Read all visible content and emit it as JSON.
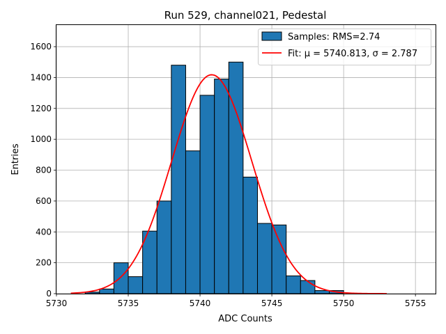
{
  "chart_data": {
    "type": "bar",
    "title": "Run 529, channel021, Pedestal",
    "xlabel": "ADC Counts",
    "ylabel": "Entries",
    "xlim": [
      5730,
      5756.4
    ],
    "ylim": [
      0,
      1740
    ],
    "xticks": [
      5730,
      5735,
      5740,
      5745,
      5750,
      5755
    ],
    "yticks": [
      0,
      200,
      400,
      600,
      800,
      1000,
      1200,
      1400,
      1600
    ],
    "grid": true,
    "legend_position": "top-right",
    "bin_edges": [
      5731,
      5732,
      5733,
      5734,
      5735,
      5736,
      5737,
      5738,
      5739,
      5740,
      5741,
      5742,
      5743,
      5744,
      5745,
      5746,
      5747,
      5748,
      5749,
      5750,
      5751,
      5752,
      5753
    ],
    "counts": [
      0,
      10,
      30,
      200,
      110,
      405,
      600,
      1480,
      925,
      1285,
      1390,
      1500,
      755,
      455,
      445,
      115,
      85,
      20,
      20,
      0,
      0,
      0
    ],
    "series": [
      {
        "name": "Samples: RMS=2.74",
        "kind": "histogram",
        "color": "#1f77b4"
      },
      {
        "name": "Fit: μ = 5740.813, σ = 2.787",
        "kind": "line",
        "color": "#ff0000",
        "mu": 5740.813,
        "sigma": 2.787,
        "amplitude": 1418,
        "x_range": [
          5731,
          5753
        ]
      }
    ]
  }
}
